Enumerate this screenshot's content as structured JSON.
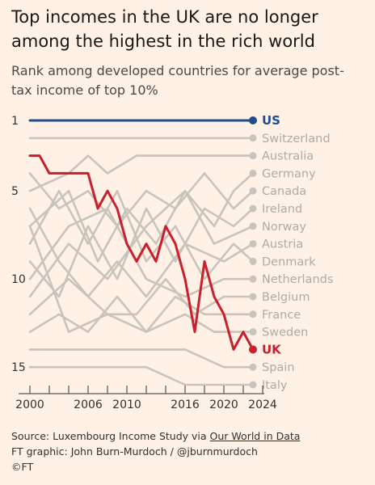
{
  "title": "Top incomes in the UK are no longer among the highest in the rich world",
  "subtitle": "Rank among developed countries for average post-tax income of top 10%",
  "source": {
    "prefix": "Source: Luxembourg Income Study via ",
    "link_text": "Our World in Data"
  },
  "credit": "FT graphic: John Burn-Murdoch / @jburnmurdoch",
  "copyright": "©FT",
  "colors": {
    "background": "#fff1e5",
    "us": "#1f4d8f",
    "uk": "#c8202d",
    "other": "#c9c3bd",
    "other_label": "#b0aaa5",
    "axis": "#33302e"
  },
  "chart_data": {
    "type": "line",
    "title": "",
    "xlabel": "",
    "ylabel": "",
    "xlim": [
      2000,
      2024
    ],
    "ylim": [
      1,
      15
    ],
    "y_inverted": true,
    "x_ticks": [
      2000,
      2006,
      2010,
      2016,
      2020,
      2024
    ],
    "x_minor_ticks": [
      2002,
      2004,
      2008,
      2012,
      2014,
      2018,
      2022
    ],
    "y_ticks": [
      1,
      5,
      10,
      15
    ],
    "grid": false,
    "legend": "direct labels at right end of lines",
    "series": [
      {
        "name": "US",
        "highlight": true,
        "color_key": "us",
        "x": [
          2000,
          2023
        ],
        "y": [
          1,
          1
        ]
      },
      {
        "name": "UK",
        "highlight": true,
        "color_key": "uk",
        "x": [
          2000,
          2001,
          2002,
          2003,
          2004,
          2005,
          2006,
          2007,
          2008,
          2009,
          2010,
          2011,
          2012,
          2013,
          2014,
          2015,
          2016,
          2017,
          2018,
          2019,
          2020,
          2021,
          2022,
          2023
        ],
        "y": [
          3,
          3,
          4,
          4,
          4,
          4,
          4,
          6,
          5,
          6,
          8,
          9,
          8,
          9,
          7,
          8,
          10,
          13,
          9,
          11,
          12,
          14,
          13,
          14
        ]
      },
      {
        "name": "Switzerland",
        "x": [
          2000,
          2023
        ],
        "y": [
          2,
          2
        ]
      },
      {
        "name": "Australia",
        "x": [
          2000,
          2004,
          2006,
          2008,
          2011,
          2016,
          2023
        ],
        "y": [
          5,
          4,
          3,
          4,
          3,
          3,
          3
        ]
      },
      {
        "name": "Germany",
        "x": [
          2000,
          2004,
          2007,
          2010,
          2013,
          2016,
          2019,
          2021,
          2023
        ],
        "y": [
          7,
          5,
          9,
          6,
          8,
          5,
          7,
          5,
          4
        ]
      },
      {
        "name": "Canada",
        "x": [
          2000,
          2003,
          2006,
          2009,
          2012,
          2015,
          2018,
          2021,
          2023
        ],
        "y": [
          4,
          6,
          5,
          7,
          5,
          6,
          4,
          6,
          5
        ]
      },
      {
        "name": "Ireland",
        "x": [
          2000,
          2003,
          2006,
          2009,
          2012,
          2015,
          2018,
          2021,
          2023
        ],
        "y": [
          9,
          11,
          7,
          10,
          6,
          9,
          6,
          7,
          6
        ]
      },
      {
        "name": "Norway",
        "x": [
          2000,
          2004,
          2008,
          2012,
          2016,
          2019,
          2023
        ],
        "y": [
          11,
          8,
          10,
          7,
          5,
          8,
          7
        ]
      },
      {
        "name": "Austria",
        "x": [
          2000,
          2003,
          2006,
          2009,
          2012,
          2016,
          2020,
          2023
        ],
        "y": [
          6,
          9,
          11,
          9,
          11,
          8,
          9,
          8
        ]
      },
      {
        "name": "Denmark",
        "x": [
          2000,
          2003,
          2006,
          2009,
          2012,
          2015,
          2018,
          2021,
          2023
        ],
        "y": [
          8,
          5,
          8,
          5,
          9,
          7,
          10,
          8,
          9
        ]
      },
      {
        "name": "Netherlands",
        "x": [
          2000,
          2004,
          2008,
          2012,
          2016,
          2020,
          2023
        ],
        "y": [
          10,
          7,
          6,
          10,
          11,
          10,
          10
        ]
      },
      {
        "name": "Belgium",
        "x": [
          2000,
          2004,
          2008,
          2011,
          2014,
          2017,
          2020,
          2023
        ],
        "y": [
          12,
          10,
          12,
          12,
          10,
          12,
          11,
          11
        ]
      },
      {
        "name": "France",
        "x": [
          2000,
          2003,
          2006,
          2009,
          2012,
          2015,
          2018,
          2021,
          2023
        ],
        "y": [
          13,
          12,
          13,
          11,
          13,
          11,
          12,
          12,
          12
        ]
      },
      {
        "name": "Sweden",
        "x": [
          2000,
          2004,
          2008,
          2012,
          2016,
          2019,
          2023
        ],
        "y": [
          7,
          13,
          12,
          13,
          12,
          13,
          13
        ]
      },
      {
        "name": "Spain",
        "x": [
          2000,
          2004,
          2008,
          2012,
          2016,
          2020,
          2023
        ],
        "y": [
          14,
          14,
          14,
          14,
          14,
          15,
          15
        ]
      },
      {
        "name": "Italy",
        "x": [
          2000,
          2004,
          2008,
          2012,
          2016,
          2020,
          2023
        ],
        "y": [
          15,
          15,
          15,
          15,
          16,
          16,
          16
        ]
      }
    ]
  }
}
